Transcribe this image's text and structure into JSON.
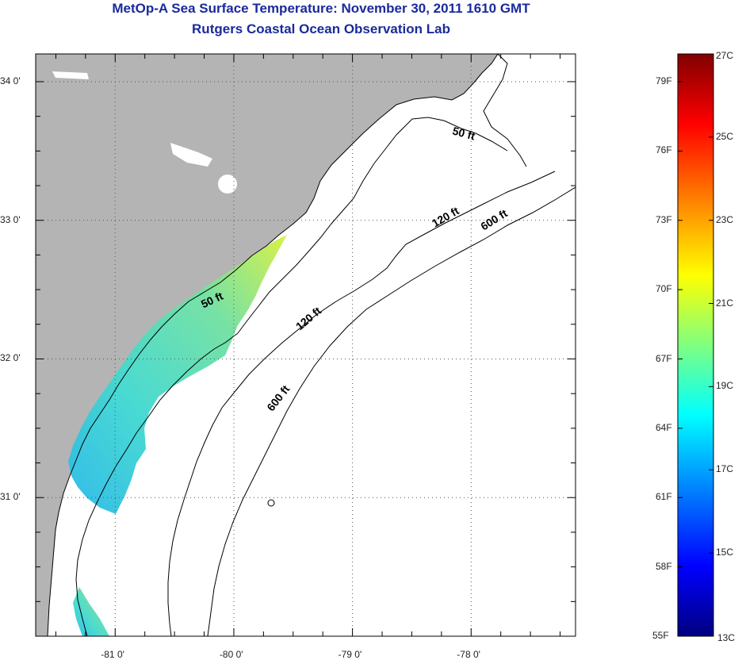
{
  "title": {
    "line1": "MetOp-A Sea Surface Temperature:  November 30, 2011 1610 GMT",
    "line2": "Rutgers Coastal Ocean Observation Lab"
  },
  "map": {
    "lon_range": [
      -81.67,
      -77.12
    ],
    "lat_range": [
      30.0,
      34.2
    ],
    "lon_ticks": [
      {
        "value": -81,
        "label": "-81 0'"
      },
      {
        "value": -80,
        "label": "-80 0'"
      },
      {
        "value": -79,
        "label": "-79 0'"
      },
      {
        "value": -78,
        "label": "-78 0'"
      }
    ],
    "lat_ticks": [
      {
        "value": 34,
        "label": "34 0'"
      },
      {
        "value": 33,
        "label": "33 0'"
      },
      {
        "value": 32,
        "label": "32 0'"
      },
      {
        "value": 31,
        "label": "31 0'"
      }
    ],
    "contour_labels": [
      {
        "label": "50 ft",
        "lon": -78.07,
        "lat": 33.6,
        "angle": 15
      },
      {
        "label": "120 ft",
        "lon": -78.2,
        "lat": 33.0,
        "angle": -30
      },
      {
        "label": "600 ft",
        "lon": -77.79,
        "lat": 32.98,
        "angle": -32
      },
      {
        "label": "50 ft",
        "lon": -80.17,
        "lat": 32.4,
        "angle": -25
      },
      {
        "label": "120 ft",
        "lon": -79.35,
        "lat": 32.27,
        "angle": -40
      },
      {
        "label": "600 ft",
        "lon": -79.6,
        "lat": 31.7,
        "angle": -52
      }
    ]
  },
  "colorbar": {
    "label_c_min": "13C",
    "label_c_max": "27C",
    "f_labels": [
      "79F",
      "76F",
      "73F",
      "70F",
      "67F",
      "64F",
      "61F",
      "58F",
      "55F"
    ],
    "c_labels": [
      "25C",
      "23C",
      "21C",
      "19C",
      "17C",
      "15C"
    ],
    "colors": [
      "#000080",
      "#0000ff",
      "#0080ff",
      "#00ffff",
      "#80ff80",
      "#ffff00",
      "#ff8000",
      "#ff0000",
      "#800000"
    ]
  }
}
